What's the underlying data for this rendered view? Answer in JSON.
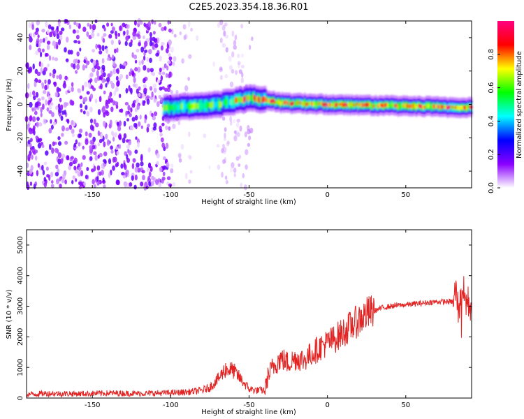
{
  "title": "C2E5.2023.354.18.36.R01",
  "colors": {
    "snr_line": "#e32222",
    "colormap": [
      "#ffffff",
      "#8a00ff",
      "#0000ff",
      "#00ffff",
      "#00ff00",
      "#ffff00",
      "#ff0000",
      "#ff0080"
    ]
  },
  "chart_data": [
    {
      "type": "heatmap",
      "xlabel": "Height of straight line (km)",
      "ylabel": "Frequency (Hz)",
      "xlim": [
        -192,
        92
      ],
      "ylim": [
        -50,
        50
      ],
      "xticks": [
        -150,
        -100,
        -50,
        0,
        50
      ],
      "yticks": [
        -40,
        -20,
        0,
        20,
        40
      ],
      "colorbar": {
        "label": "Normalized spectral amplitude",
        "ticks": [
          "0.0",
          "0.2",
          "0.4",
          "0.6",
          "0.8"
        ],
        "range": [
          0,
          1
        ]
      },
      "feature": {
        "description_points": [
          {
            "x": -100,
            "freq": -2
          },
          {
            "x": -70,
            "freq": 0
          },
          {
            "x": -50,
            "freq": 4
          },
          {
            "x": -30,
            "freq": 1
          },
          {
            "x": 0,
            "freq": 0
          },
          {
            "x": 50,
            "freq": -1
          },
          {
            "x": 90,
            "freq": -2
          }
        ]
      }
    },
    {
      "type": "line",
      "xlabel": "Height of straight line (km)",
      "ylabel": "SNR (10 * v/v)",
      "xlim": [
        -192,
        92
      ],
      "ylim": [
        0,
        5500
      ],
      "xticks": [
        -150,
        -100,
        -50,
        0,
        50
      ],
      "yticks": [
        0,
        1000,
        2000,
        3000,
        4000,
        5000
      ],
      "series": [
        {
          "x": [
            -192,
            -180,
            -160,
            -140,
            -120,
            -100,
            -90,
            -80,
            -75,
            -70,
            -65,
            -60,
            -55,
            -50,
            -45,
            -40,
            -38,
            -35,
            -30,
            -25,
            -20,
            -15,
            -10,
            -5,
            0,
            5,
            10,
            15,
            20,
            25,
            30,
            35,
            40,
            50,
            60,
            70,
            80,
            82,
            84,
            86,
            88,
            90,
            92
          ],
          "values": [
            120,
            150,
            140,
            160,
            150,
            170,
            190,
            250,
            350,
            600,
            950,
            900,
            600,
            300,
            250,
            250,
            700,
            1000,
            1300,
            1150,
            1300,
            1250,
            1450,
            1650,
            1800,
            1950,
            2150,
            2350,
            2550,
            2750,
            2850,
            2950,
            3000,
            3050,
            3100,
            3150,
            3150,
            3500,
            2700,
            3600,
            3200,
            3100,
            3050
          ]
        }
      ]
    }
  ]
}
